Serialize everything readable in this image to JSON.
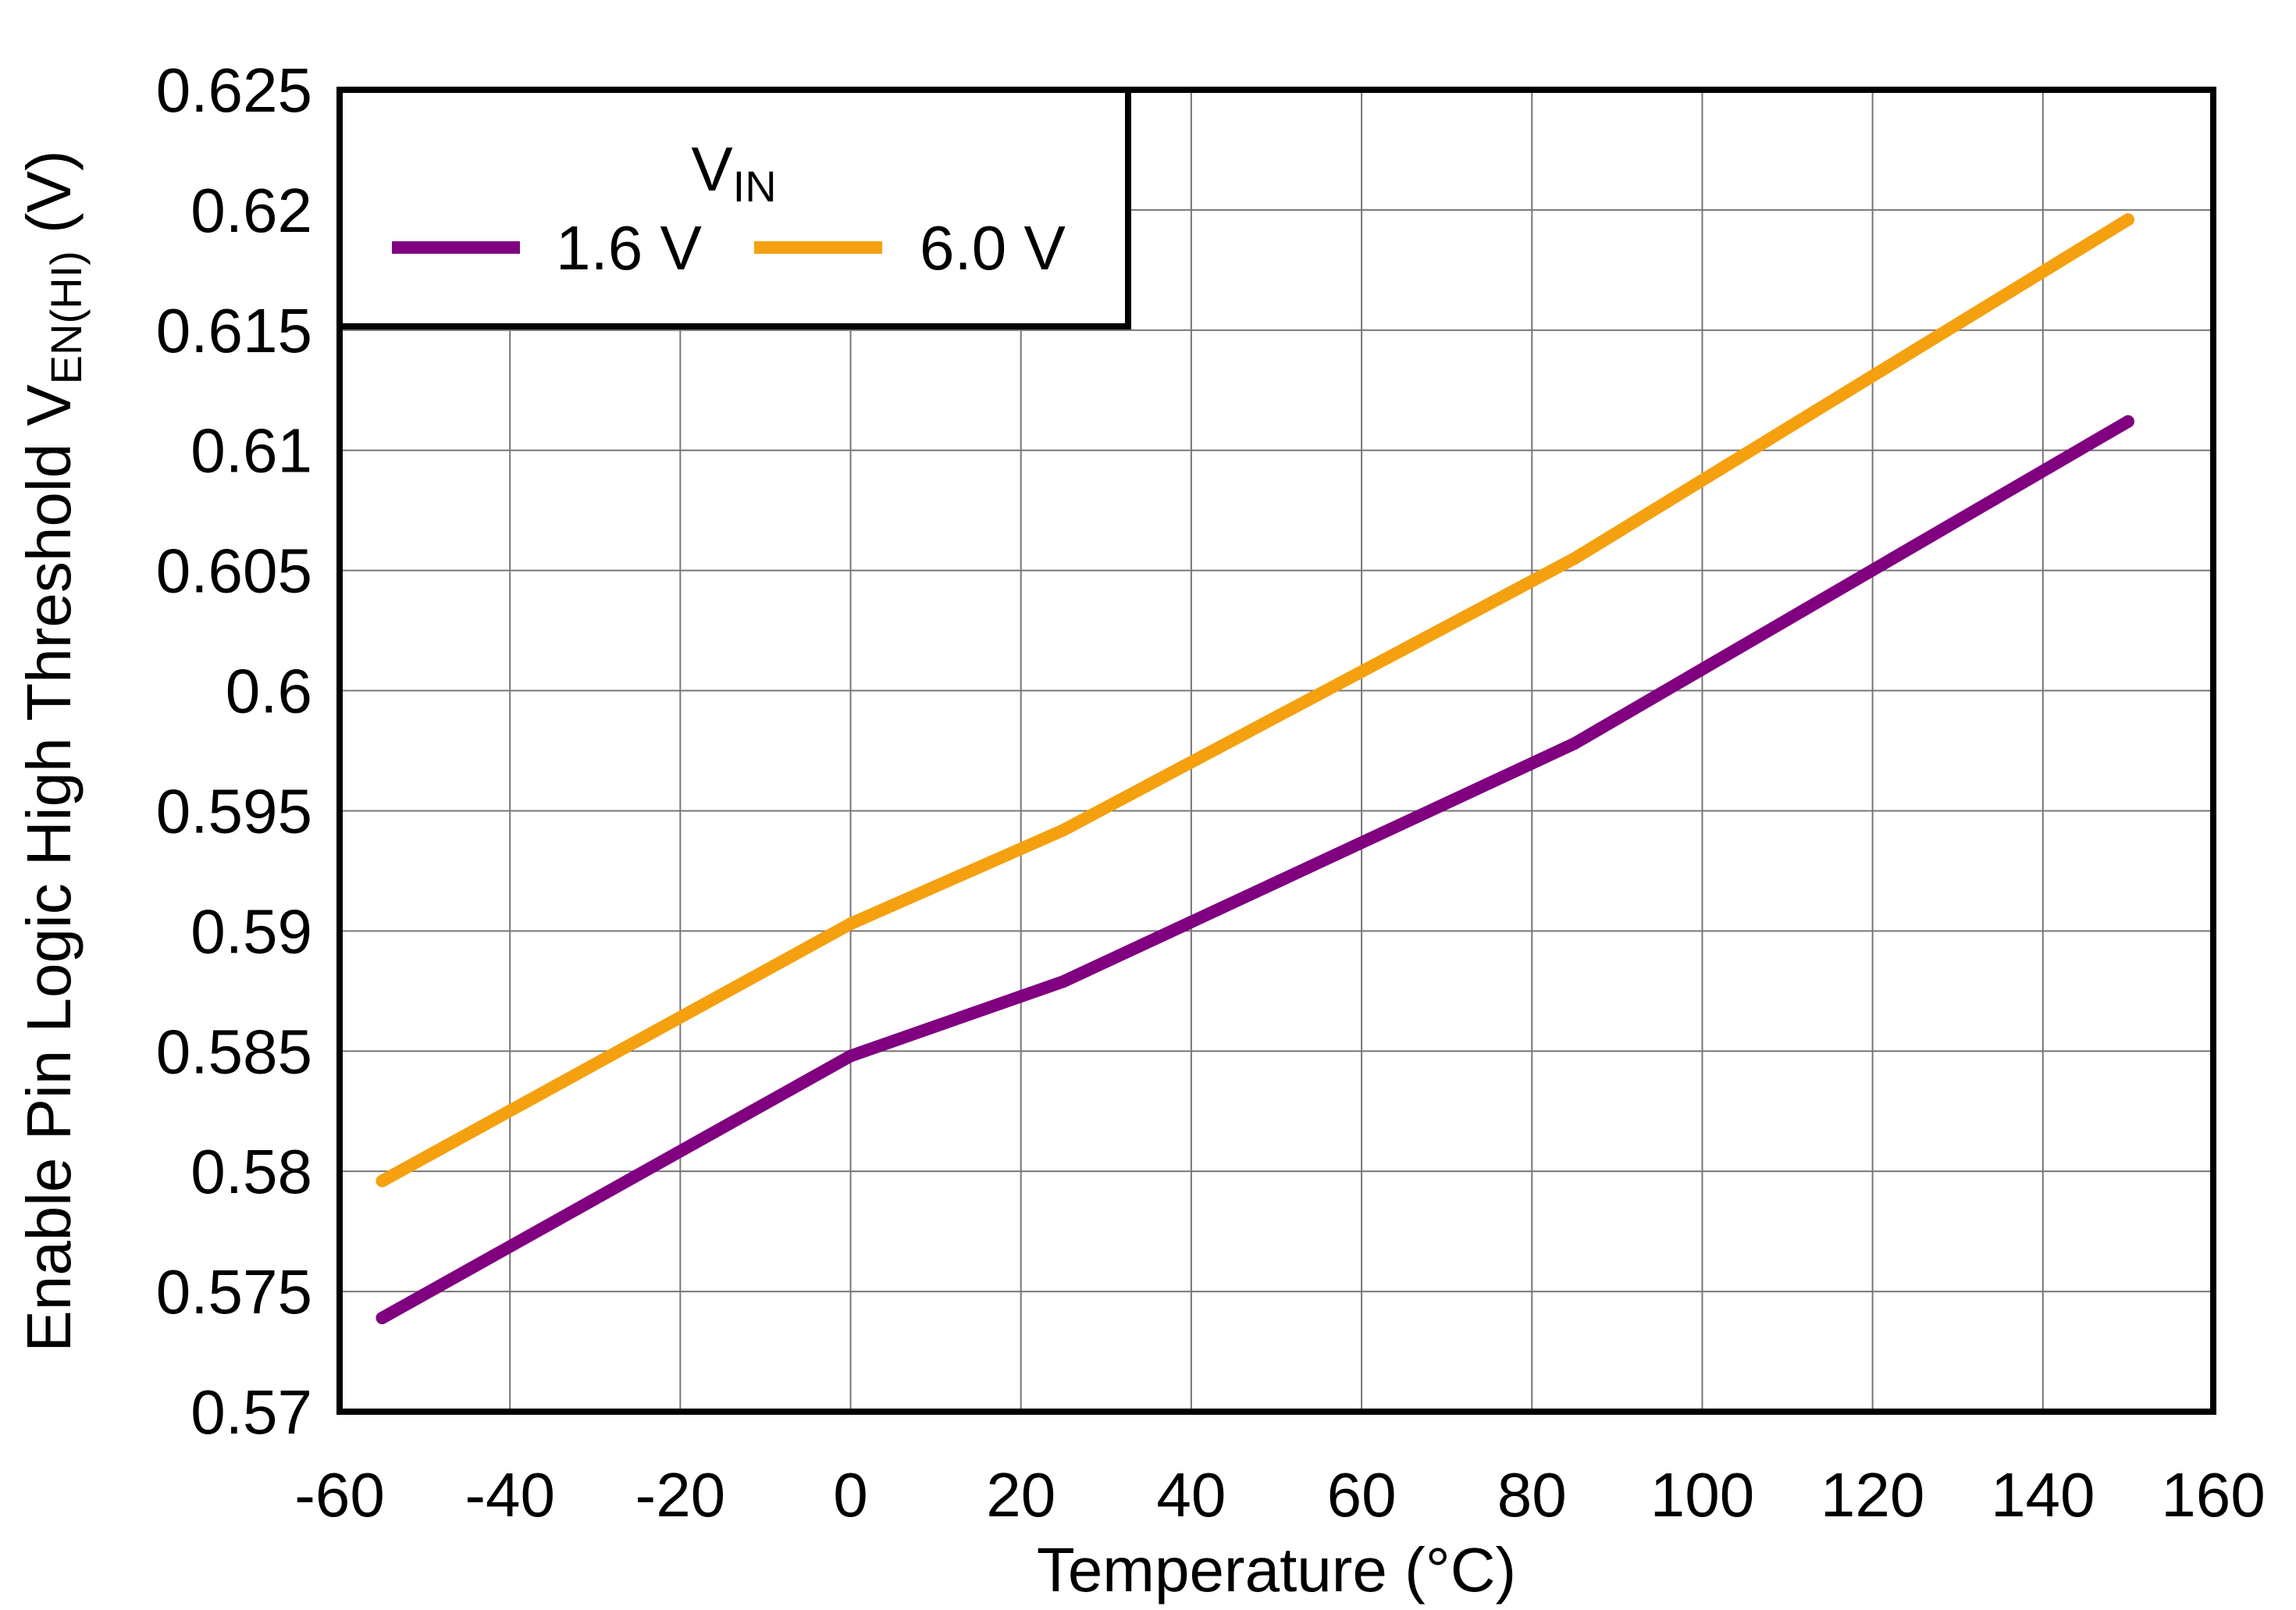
{
  "chart_data": {
    "type": "line",
    "title": "",
    "xlabel": "Temperature (°C)",
    "ylabel": {
      "main": "Enable Pin Logic High Threshold V",
      "sub": "EN(HI)",
      "unit": " (V)"
    },
    "xlim": [
      -60,
      160
    ],
    "ylim": [
      0.57,
      0.625
    ],
    "x_ticks": [
      -60,
      -40,
      -20,
      0,
      20,
      40,
      60,
      80,
      100,
      120,
      140,
      160
    ],
    "x_tick_labels": [
      "-60",
      "-40",
      "-20",
      "0",
      "20",
      "40",
      "60",
      "80",
      "100",
      "120",
      "140",
      "160"
    ],
    "y_ticks": [
      0.57,
      0.575,
      0.58,
      0.585,
      0.59,
      0.595,
      0.6,
      0.605,
      0.61,
      0.615,
      0.62,
      0.625
    ],
    "y_tick_labels": [
      "0.57",
      "0.575",
      "0.58",
      "0.585",
      "0.59",
      "0.595",
      "0.6",
      "0.605",
      "0.61",
      "0.615",
      "0.62",
      "0.625"
    ],
    "grid": true,
    "legend": {
      "title_main": "V",
      "title_sub": "IN",
      "placement": "top-left"
    },
    "series": [
      {
        "name": "1.6 V",
        "color": "#800080",
        "x": [
          -55,
          0,
          25,
          85,
          150
        ],
        "y": [
          0.5739,
          0.5848,
          0.5879,
          0.5978,
          0.6112
        ]
      },
      {
        "name": "6.0 V",
        "color": "#f5a00f",
        "x": [
          -55,
          0,
          25,
          85,
          150
        ],
        "y": [
          0.5796,
          0.5903,
          0.5942,
          0.6055,
          0.6196
        ]
      }
    ]
  }
}
